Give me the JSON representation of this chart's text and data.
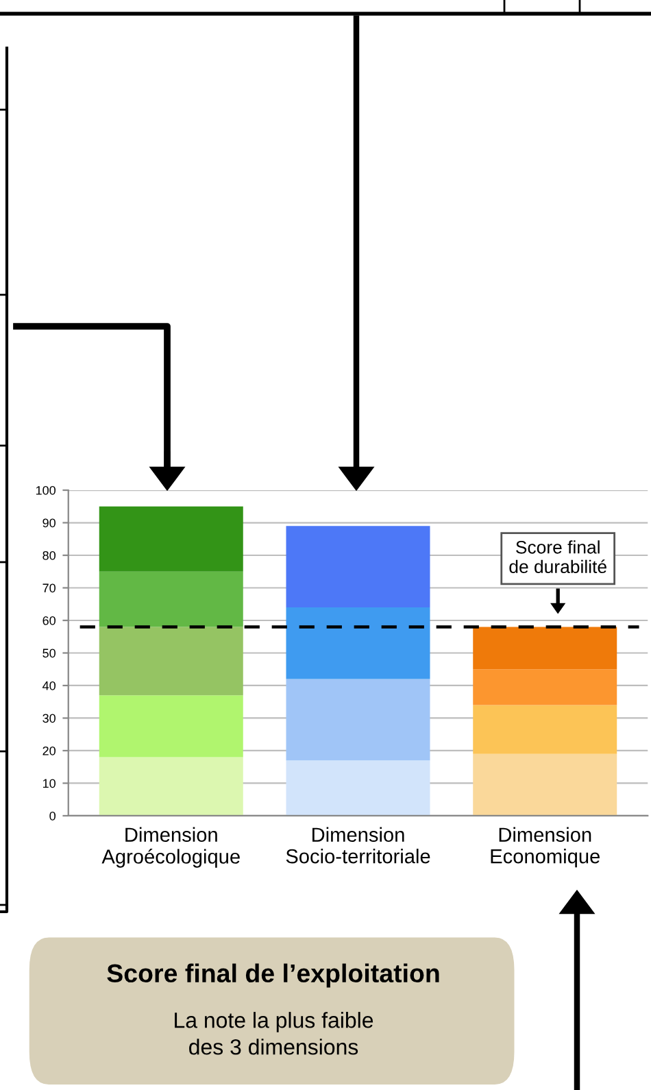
{
  "chart_data": {
    "type": "bar",
    "stacked": true,
    "categories": [
      "Dimension\nAgroécologique",
      "Dimension\nSocio-territoriale",
      "Dimension\nEconomique"
    ],
    "series": [
      {
        "colors": [
          "#dcf7b0",
          "#d2e4fb",
          "#fad89a"
        ],
        "values": [
          18,
          17,
          19
        ]
      },
      {
        "colors": [
          "#b0f56e",
          "#a0c5f7",
          "#fcc456"
        ],
        "values": [
          19,
          25,
          15
        ]
      },
      {
        "colors": [
          "#95c463",
          "#3f9bf0",
          "#fc962f"
        ],
        "values": [
          21,
          22,
          11
        ]
      },
      {
        "colors": [
          "#62b845",
          "#4d78f7",
          "#ef7a0a"
        ],
        "values": [
          17,
          25,
          13
        ]
      },
      {
        "colors": [
          "#339417",
          null,
          null
        ],
        "values": [
          20,
          null,
          null
        ]
      }
    ],
    "ylim": [
      0,
      100
    ],
    "yticks": [
      0,
      10,
      20,
      30,
      40,
      50,
      60,
      70,
      80,
      90,
      100
    ],
    "grid": "y",
    "ref_lines": [
      {
        "axis": "y",
        "value": 58,
        "color": "#000000",
        "line_style": "dashed"
      }
    ],
    "annotations": [
      "Score final\nde durabilité",
      "Score final de l’exploitation",
      "La note la plus faible\ndes 3 dimensions"
    ]
  }
}
